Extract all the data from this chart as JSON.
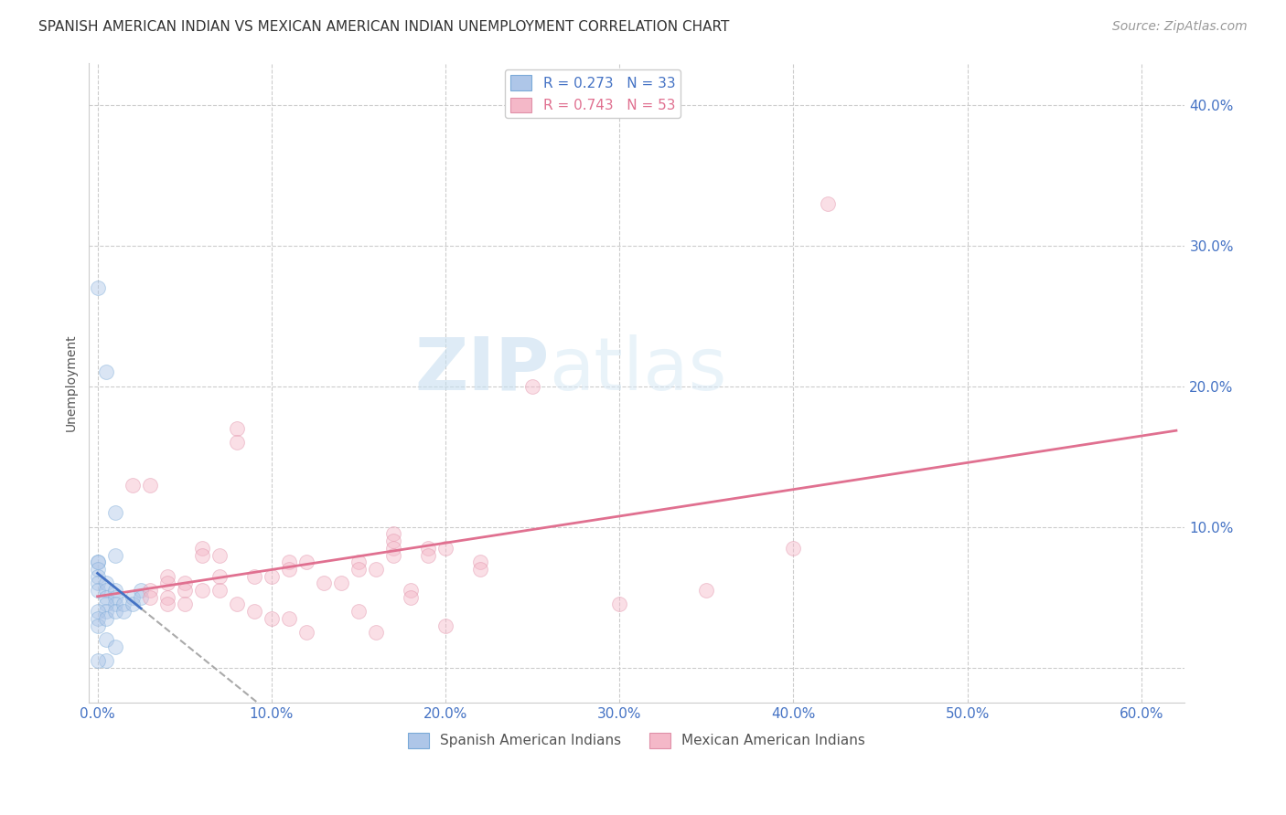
{
  "title": "SPANISH AMERICAN INDIAN VS MEXICAN AMERICAN INDIAN UNEMPLOYMENT CORRELATION CHART",
  "source": "Source: ZipAtlas.com",
  "ylabel": "Unemployment",
  "x_ticks": [
    0.0,
    0.1,
    0.2,
    0.3,
    0.4,
    0.5,
    0.6
  ],
  "x_tick_labels": [
    "0.0%",
    "10.0%",
    "20.0%",
    "30.0%",
    "40.0%",
    "50.0%",
    "60.0%"
  ],
  "y_ticks": [
    0.0,
    0.1,
    0.2,
    0.3,
    0.4
  ],
  "y_tick_labels": [
    "",
    "10.0%",
    "20.0%",
    "30.0%",
    "40.0%"
  ],
  "xlim": [
    -0.005,
    0.625
  ],
  "ylim": [
    -0.025,
    0.43
  ],
  "watermark_zip": "ZIP",
  "watermark_atlas": "atlas",
  "legend_series": [
    {
      "label": "R = 0.273   N = 33",
      "color": "#aec6e8"
    },
    {
      "label": "R = 0.743   N = 53",
      "color": "#f4b8c8"
    }
  ],
  "legend_bottom": [
    {
      "label": "Spanish American Indians",
      "color": "#aec6e8"
    },
    {
      "label": "Mexican American Indians",
      "color": "#f4b8c8"
    }
  ],
  "blue_scatter": [
    [
      0.0,
      0.27
    ],
    [
      0.005,
      0.21
    ],
    [
      0.01,
      0.08
    ],
    [
      0.01,
      0.11
    ],
    [
      0.0,
      0.075
    ],
    [
      0.0,
      0.075
    ],
    [
      0.0,
      0.07
    ],
    [
      0.0,
      0.065
    ],
    [
      0.0,
      0.06
    ],
    [
      0.0,
      0.055
    ],
    [
      0.005,
      0.06
    ],
    [
      0.005,
      0.055
    ],
    [
      0.005,
      0.05
    ],
    [
      0.01,
      0.055
    ],
    [
      0.01,
      0.05
    ],
    [
      0.01,
      0.045
    ],
    [
      0.005,
      0.045
    ],
    [
      0.005,
      0.04
    ],
    [
      0.0,
      0.04
    ],
    [
      0.0,
      0.035
    ],
    [
      0.0,
      0.03
    ],
    [
      0.005,
      0.035
    ],
    [
      0.01,
      0.04
    ],
    [
      0.015,
      0.045
    ],
    [
      0.015,
      0.04
    ],
    [
      0.02,
      0.05
    ],
    [
      0.02,
      0.045
    ],
    [
      0.025,
      0.055
    ],
    [
      0.025,
      0.05
    ],
    [
      0.005,
      0.02
    ],
    [
      0.01,
      0.015
    ],
    [
      0.005,
      0.005
    ],
    [
      0.0,
      0.005
    ]
  ],
  "pink_scatter": [
    [
      0.42,
      0.33
    ],
    [
      0.25,
      0.2
    ],
    [
      0.08,
      0.17
    ],
    [
      0.08,
      0.16
    ],
    [
      0.02,
      0.13
    ],
    [
      0.03,
      0.13
    ],
    [
      0.17,
      0.095
    ],
    [
      0.17,
      0.09
    ],
    [
      0.17,
      0.085
    ],
    [
      0.17,
      0.08
    ],
    [
      0.19,
      0.085
    ],
    [
      0.19,
      0.08
    ],
    [
      0.2,
      0.085
    ],
    [
      0.06,
      0.085
    ],
    [
      0.06,
      0.08
    ],
    [
      0.07,
      0.08
    ],
    [
      0.4,
      0.085
    ],
    [
      0.11,
      0.075
    ],
    [
      0.11,
      0.07
    ],
    [
      0.12,
      0.075
    ],
    [
      0.15,
      0.075
    ],
    [
      0.15,
      0.07
    ],
    [
      0.16,
      0.07
    ],
    [
      0.22,
      0.075
    ],
    [
      0.22,
      0.07
    ],
    [
      0.09,
      0.065
    ],
    [
      0.1,
      0.065
    ],
    [
      0.07,
      0.065
    ],
    [
      0.04,
      0.065
    ],
    [
      0.04,
      0.06
    ],
    [
      0.05,
      0.06
    ],
    [
      0.05,
      0.055
    ],
    [
      0.06,
      0.055
    ],
    [
      0.07,
      0.055
    ],
    [
      0.13,
      0.06
    ],
    [
      0.14,
      0.06
    ],
    [
      0.03,
      0.055
    ],
    [
      0.03,
      0.05
    ],
    [
      0.04,
      0.05
    ],
    [
      0.04,
      0.045
    ],
    [
      0.05,
      0.045
    ],
    [
      0.18,
      0.055
    ],
    [
      0.18,
      0.05
    ],
    [
      0.08,
      0.045
    ],
    [
      0.09,
      0.04
    ],
    [
      0.1,
      0.035
    ],
    [
      0.11,
      0.035
    ],
    [
      0.15,
      0.04
    ],
    [
      0.12,
      0.025
    ],
    [
      0.16,
      0.025
    ],
    [
      0.2,
      0.03
    ],
    [
      0.3,
      0.045
    ],
    [
      0.35,
      0.055
    ]
  ],
  "blue_line_color": "#4472c4",
  "pink_line_color": "#e07090",
  "background_color": "#ffffff",
  "grid_color": "#cccccc",
  "title_fontsize": 11,
  "source_fontsize": 10,
  "axis_tick_color": "#4472c4",
  "marker_size": 130,
  "marker_alpha": 0.45
}
